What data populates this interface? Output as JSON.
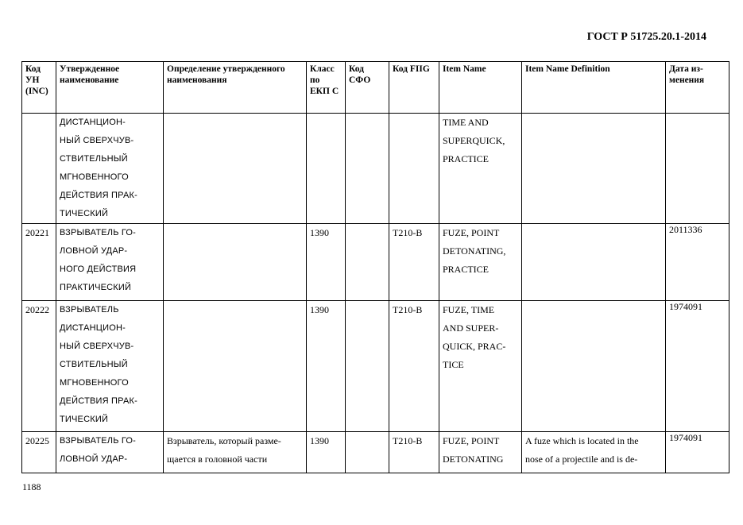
{
  "header": {
    "doc_title": "ГОСТ Р 51725.20.1-2014"
  },
  "table": {
    "columns": [
      "Код УН (INC)",
      "Утвержденное наименование",
      "Определение утвержденного наименования",
      "Класс по ЕКП С",
      "Код СФО",
      "Код FIIG",
      "Item Name",
      "Item Name Definition",
      "Дата из-\nменения"
    ],
    "rows": [
      {
        "inc": "",
        "name": "ДИСТАНЦИОН-\nНЫЙ СВЕРХЧУВ-\nСТВИТЕЛЬНЫЙ\nМГНОВЕННОГО\nДЕЙСТВИЯ ПРАК-\nТИЧЕСКИЙ",
        "definition": "",
        "class": "",
        "sfo": "",
        "fiig": "",
        "item_name": "TIME AND\nSUPERQUICK,\nPRACTICE",
        "item_def": "",
        "date": ""
      },
      {
        "inc": "20221",
        "name": "ВЗРЫВАТЕЛЬ ГО-\nЛОВНОЙ УДАР-\nНОГО ДЕЙСТВИЯ\nПРАКТИЧЕСКИЙ",
        "definition": "",
        "class": "1390",
        "sfo": "",
        "fiig": "T210-B",
        "item_name": "FUZE, POINT\nDETONATING,\nPRACTICE",
        "item_def": "",
        "date": "2011336"
      },
      {
        "inc": "20222",
        "name": "ВЗРЫВАТЕЛЬ\nДИСТАНЦИОН-\nНЫЙ СВЕРХЧУВ-\nСТВИТЕЛЬНЫЙ\nМГНОВЕННОГО\nДЕЙСТВИЯ ПРАК-\nТИЧЕСКИЙ",
        "definition": "",
        "class": "1390",
        "sfo": "",
        "fiig": "T210-B",
        "item_name": "FUZE, TIME\nAND SUPER-\nQUICK, PRAC-\nTICE",
        "item_def": "",
        "date": "1974091"
      },
      {
        "inc": "20225",
        "name": "ВЗРЫВАТЕЛЬ ГО-\nЛОВНОЙ УДАР-",
        "definition": "Взрыватель, который разме-\nщается в головной части",
        "class": "1390",
        "sfo": "",
        "fiig": "T210-B",
        "item_name": "FUZE, POINT\nDETONATING",
        "item_def": "A fuze which is located in the\nnose of a projectile and is de-",
        "date": "1974091"
      }
    ]
  },
  "footer": {
    "page_number": "1188"
  }
}
